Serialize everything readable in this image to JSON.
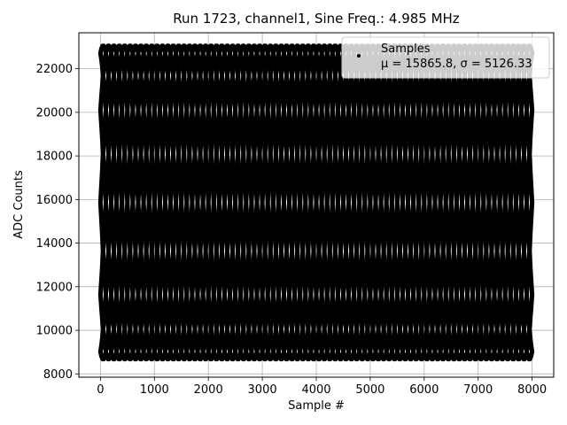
{
  "chart_data": {
    "type": "scatter",
    "title": "Run 1723, channel1, Sine Freq.: 4.985 MHz",
    "xlabel": "Sample #",
    "ylabel": "ADC Counts",
    "xlim": [
      -400,
      8400
    ],
    "ylim": [
      7850,
      23650
    ],
    "xticks": [
      0,
      1000,
      2000,
      3000,
      4000,
      5000,
      6000,
      7000,
      8000
    ],
    "yticks": [
      8000,
      10000,
      12000,
      14000,
      16000,
      18000,
      20000,
      22000
    ],
    "grid": true,
    "legend": {
      "position": "top-right",
      "label": "Samples",
      "stats": "μ = 15865.8, σ = 5126.33"
    },
    "series": [
      {
        "name": "Samples",
        "marker": "dot",
        "color": "#000000",
        "n_points": 8000,
        "waveform": {
          "kind": "aliased-sine",
          "mean": 15865.8,
          "amplitude": 7200,
          "phase_step_deg": 108,
          "beat_period_samples": 1000,
          "x_range": [
            0,
            8000
          ]
        }
      }
    ]
  }
}
